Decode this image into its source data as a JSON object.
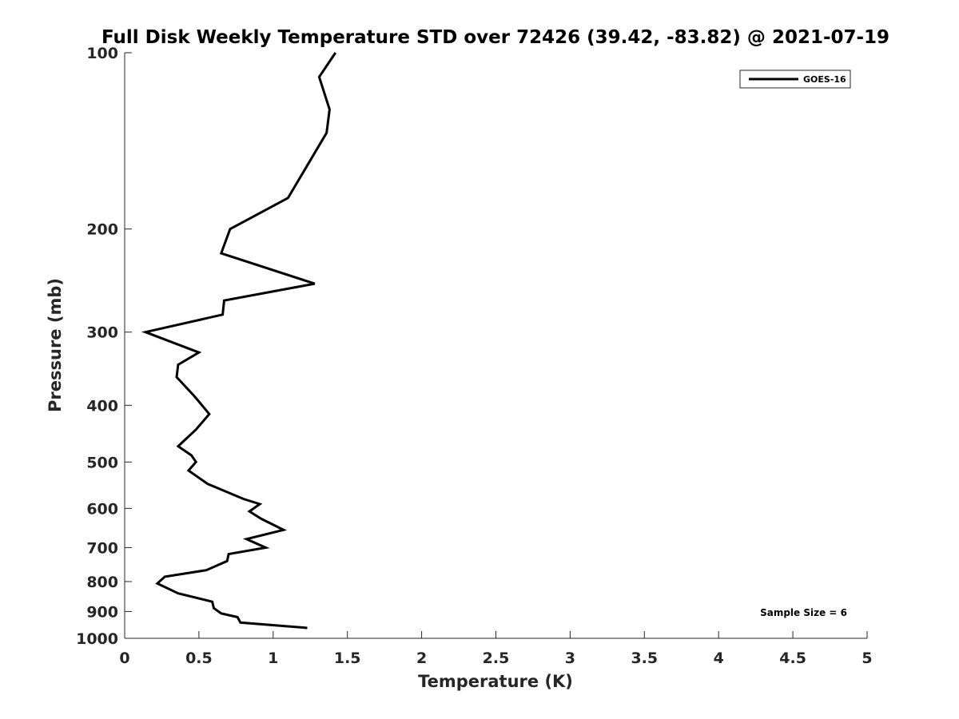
{
  "chart_data": {
    "type": "line",
    "title": "Full Disk Weekly Temperature STD over 72426 (39.42, -83.82) @ 2021-07-19",
    "xlabel": "Temperature (K)",
    "ylabel": "Pressure (mb)",
    "xlim": [
      0,
      5
    ],
    "ylim": [
      100,
      1000
    ],
    "y_scale": "log",
    "y_reversed": true,
    "grid": false,
    "legend_position": "top-right",
    "x_ticks": [
      "0",
      "0.5",
      "1",
      "1.5",
      "2",
      "2.5",
      "3",
      "3.5",
      "4",
      "4.5",
      "5"
    ],
    "y_ticks": [
      "100",
      "200",
      "300",
      "400",
      "500",
      "600",
      "700",
      "800",
      "900",
      "1000"
    ],
    "annotation": "Sample Size = 6",
    "series": [
      {
        "name": "GOES-16",
        "color": "#000000",
        "x": [
          1.42,
          1.31,
          1.38,
          1.36,
          1.1,
          0.71,
          0.65,
          1.28,
          0.67,
          0.66,
          0.14,
          0.5,
          0.36,
          0.35,
          0.47,
          0.57,
          0.48,
          0.36,
          0.45,
          0.48,
          0.43,
          0.56,
          0.8,
          0.91,
          0.84,
          0.92,
          1.07,
          0.82,
          0.95,
          0.7,
          0.69,
          0.55,
          0.27,
          0.22,
          0.36,
          0.59,
          0.6,
          0.65,
          0.76,
          0.78,
          1.23
        ],
        "y": [
          100,
          110,
          125,
          137,
          177,
          200,
          220,
          248,
          265,
          280,
          300,
          325,
          341,
          358,
          386,
          414,
          440,
          470,
          487,
          500,
          517,
          545,
          578,
          590,
          607,
          625,
          653,
          677,
          700,
          718,
          738,
          765,
          785,
          806,
          838,
          866,
          888,
          907,
          920,
          940,
          960
        ]
      }
    ]
  }
}
